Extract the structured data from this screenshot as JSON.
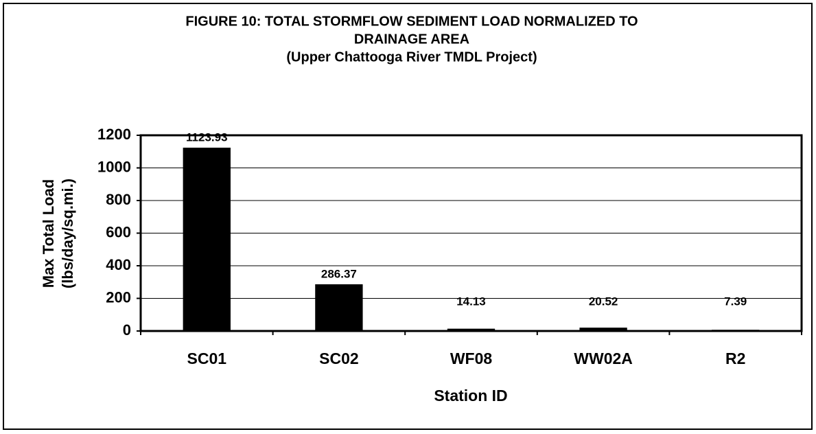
{
  "chart_data": {
    "type": "bar",
    "title": [
      "FIGURE  10:  TOTAL STORMFLOW SEDIMENT LOAD NORMALIZED TO",
      "DRAINAGE AREA"
    ],
    "subtitle": "(Upper Chattooga River TMDL Project)",
    "y_label": [
      "Max Total Load",
      "(lbs/day/sq.mi.)"
    ],
    "x_label": "Station ID",
    "categories": [
      "SC01",
      "SC02",
      "WF08",
      "WW02A",
      "R2"
    ],
    "values": [
      1123.93,
      286.37,
      14.13,
      20.52,
      7.39
    ],
    "color": "#000000",
    "ylim": [
      0,
      1200
    ],
    "yticks": [
      0,
      200,
      400,
      600,
      800,
      1000,
      1200
    ],
    "grid": true
  }
}
